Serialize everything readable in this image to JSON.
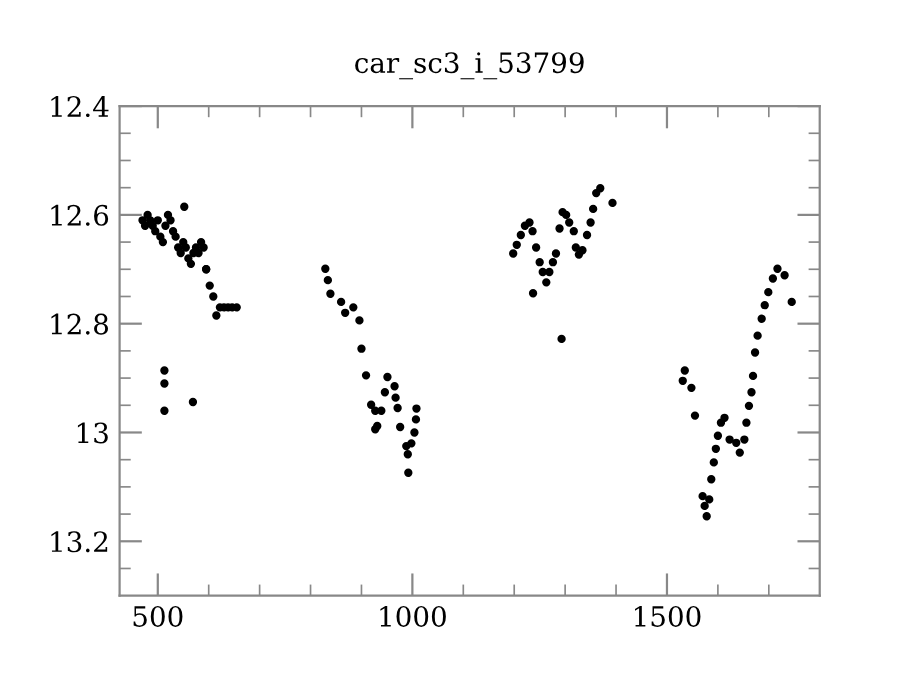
{
  "chart_data": {
    "type": "scatter",
    "title": "car_sc3_i_53799",
    "xlim": [
      425,
      1800
    ],
    "ylim": [
      13.3,
      12.4
    ],
    "xticks": [
      {
        "value": 500,
        "label": "500"
      },
      {
        "value": 600,
        "label": null
      },
      {
        "value": 700,
        "label": null
      },
      {
        "value": 800,
        "label": null
      },
      {
        "value": 900,
        "label": null
      },
      {
        "value": 1000,
        "label": "1000"
      },
      {
        "value": 1100,
        "label": null
      },
      {
        "value": 1200,
        "label": null
      },
      {
        "value": 1300,
        "label": null
      },
      {
        "value": 1400,
        "label": null
      },
      {
        "value": 1500,
        "label": "1500"
      },
      {
        "value": 1600,
        "label": null
      },
      {
        "value": 1700,
        "label": null
      }
    ],
    "yticks": [
      {
        "value": 12.4,
        "label": "12.4"
      },
      {
        "value": 12.45,
        "label": null
      },
      {
        "value": 12.5,
        "label": null
      },
      {
        "value": 12.55,
        "label": null
      },
      {
        "value": 12.6,
        "label": "12.6"
      },
      {
        "value": 12.65,
        "label": null
      },
      {
        "value": 12.7,
        "label": null
      },
      {
        "value": 12.75,
        "label": null
      },
      {
        "value": 12.8,
        "label": "12.8"
      },
      {
        "value": 12.85,
        "label": null
      },
      {
        "value": 12.9,
        "label": null
      },
      {
        "value": 12.95,
        "label": null
      },
      {
        "value": 13.0,
        "label": "13"
      },
      {
        "value": 13.05,
        "label": null
      },
      {
        "value": 13.1,
        "label": null
      },
      {
        "value": 13.15,
        "label": null
      },
      {
        "value": 13.2,
        "label": "13.2"
      },
      {
        "value": 13.25,
        "label": null
      }
    ],
    "grid": false,
    "marker": "circle",
    "series": [
      {
        "color": "#000000",
        "x": [
          470,
          475,
          480,
          485,
          490,
          495,
          500,
          505,
          510,
          515,
          520,
          525,
          530,
          535,
          540,
          545,
          550,
          555,
          560,
          565,
          570,
          575,
          580,
          585,
          590,
          595,
          552,
          595,
          602,
          609,
          615,
          622,
          630,
          638,
          646,
          655,
          513,
          513,
          513,
          569,
          829,
          834,
          839,
          860,
          868,
          884,
          896,
          900,
          909,
          919,
          927,
          927,
          931,
          939,
          951,
          946,
          965,
          967,
          971,
          976,
          988,
          991,
          992,
          998,
          1004,
          1007,
          1008,
          1198,
          1205,
          1213,
          1221,
          1230,
          1236,
          1243,
          1250,
          1256,
          1263,
          1269,
          1276,
          1282,
          1289,
          1295,
          1302,
          1308,
          1317,
          1321,
          1327,
          1334,
          1343,
          1350,
          1355,
          1361,
          1369,
          1393,
          1237,
          1293,
          1535,
          1531,
          1548,
          1555,
          1570,
          1574,
          1578,
          1583,
          1587,
          1592,
          1596,
          1600,
          1606,
          1613,
          1623,
          1636,
          1643,
          1652,
          1656,
          1661,
          1666,
          1669,
          1673,
          1678,
          1686,
          1692,
          1699,
          1708,
          1717,
          1731,
          1745
        ],
        "values": [
          12.61,
          12.62,
          12.6,
          12.61,
          12.62,
          12.63,
          12.61,
          12.64,
          12.65,
          12.62,
          12.6,
          12.61,
          12.63,
          12.64,
          12.66,
          12.67,
          12.65,
          12.66,
          12.68,
          12.69,
          12.67,
          12.66,
          12.67,
          12.65,
          12.66,
          12.7,
          12.585,
          12.7,
          12.73,
          12.75,
          12.785,
          12.77,
          12.77,
          12.77,
          12.77,
          12.77,
          12.886,
          12.91,
          12.96,
          12.944,
          12.699,
          12.72,
          12.745,
          12.76,
          12.78,
          12.77,
          12.794,
          12.846,
          12.895,
          12.949,
          12.96,
          12.994,
          12.988,
          12.96,
          12.898,
          12.926,
          12.915,
          12.936,
          12.955,
          12.99,
          13.025,
          13.04,
          13.074,
          13.02,
          13.0,
          12.976,
          12.956,
          12.671,
          12.655,
          12.637,
          12.62,
          12.614,
          12.63,
          12.66,
          12.687,
          12.705,
          12.724,
          12.705,
          12.687,
          12.671,
          12.625,
          12.595,
          12.6,
          12.614,
          12.63,
          12.66,
          12.673,
          12.665,
          12.637,
          12.614,
          12.589,
          12.56,
          12.551,
          12.578,
          12.744,
          12.828,
          12.886,
          12.905,
          12.918,
          12.969,
          13.117,
          13.135,
          13.154,
          13.123,
          13.086,
          13.055,
          13.03,
          13.006,
          12.982,
          12.973,
          13.013,
          13.019,
          13.037,
          13.013,
          12.982,
          12.951,
          12.926,
          12.896,
          12.853,
          12.822,
          12.791,
          12.766,
          12.742,
          12.717,
          12.699,
          12.711,
          12.76
        ]
      }
    ]
  }
}
